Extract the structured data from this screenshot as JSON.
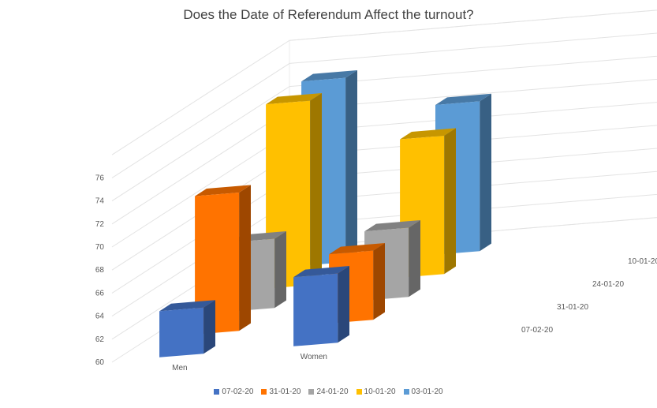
{
  "chart_data": {
    "type": "bar",
    "title": "Does the Date of Referendum Affect the turnout?",
    "categories": [
      "Men",
      "Women"
    ],
    "series": [
      {
        "name": "07-02-20",
        "values": [
          64,
          66
        ],
        "color": "#4472C4"
      },
      {
        "name": "31-01-20",
        "values": [
          72,
          66
        ],
        "color": "#FF7300"
      },
      {
        "name": "24-01-20",
        "values": [
          66,
          66
        ],
        "color": "#A5A5A5"
      },
      {
        "name": "10-01-20",
        "values": [
          76,
          72
        ],
        "color": "#FFC000"
      },
      {
        "name": "03-01-20",
        "values": [
          76,
          73
        ],
        "color": "#5B9BD5"
      }
    ],
    "y_ticks": [
      "60",
      "62",
      "64",
      "66",
      "68",
      "70",
      "72",
      "74",
      "76"
    ],
    "ylim": [
      60,
      78
    ],
    "legend_position": "bottom",
    "grid": true,
    "view": "3d-column"
  }
}
